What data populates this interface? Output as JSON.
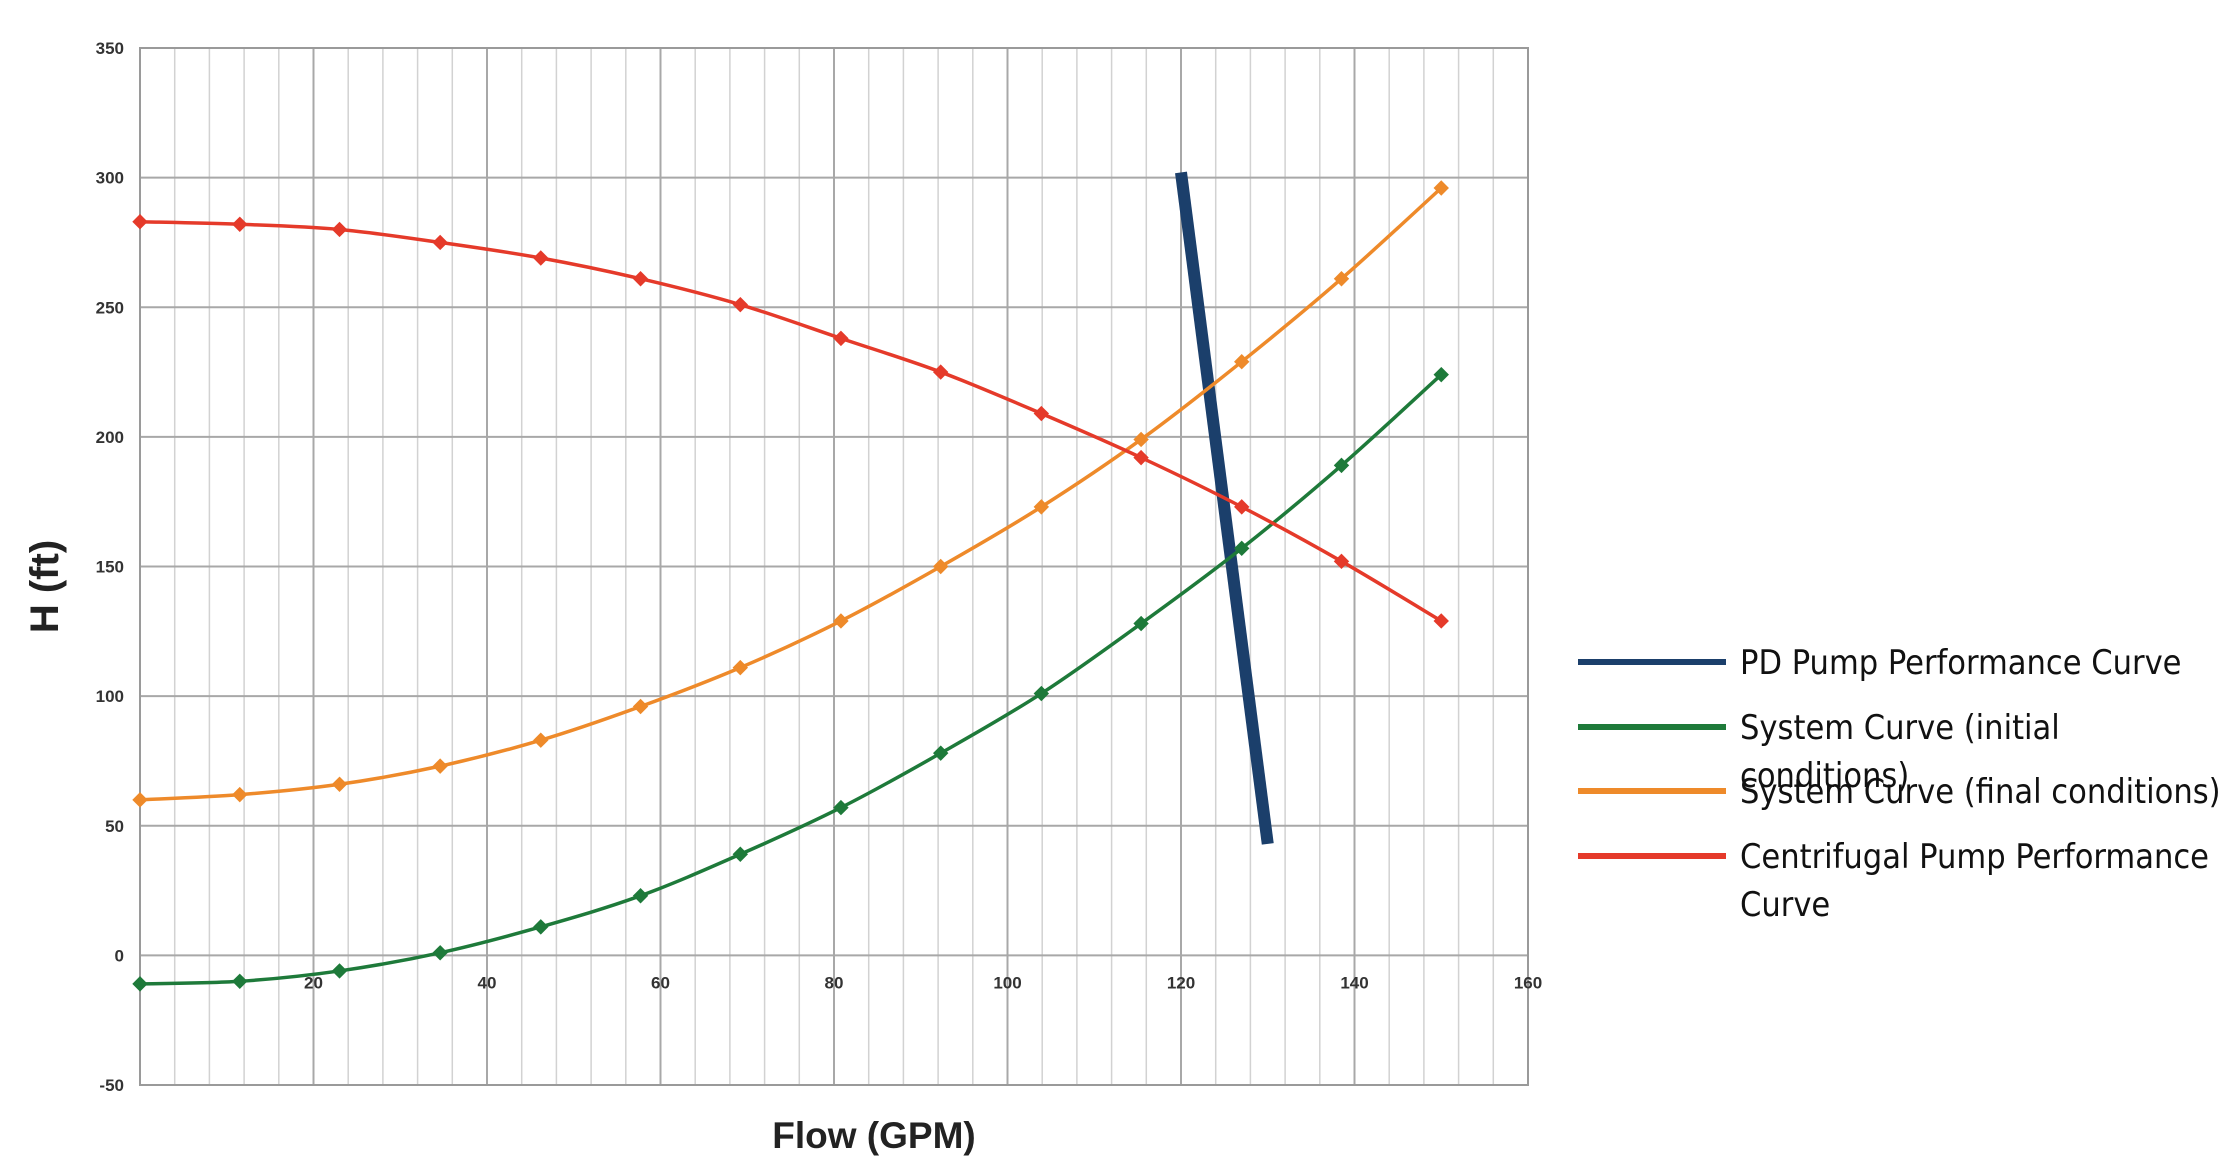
{
  "chart_data": {
    "type": "line",
    "title": "",
    "xlabel": "Flow (GPM)",
    "ylabel": "H (ft)",
    "xlim": [
      0,
      160
    ],
    "ylim": [
      -50,
      350
    ],
    "x_ticks": [
      20,
      40,
      60,
      80,
      100,
      120,
      140,
      160
    ],
    "y_ticks": [
      -50,
      0,
      50,
      100,
      150,
      200,
      250,
      300,
      350
    ],
    "x_minor_step": 4,
    "grid": true,
    "legend_position": "right",
    "series": [
      {
        "name": "PD Pump Performance Curve",
        "color": "#1b3f6b",
        "markers": false,
        "x": [
          120,
          130
        ],
        "y": [
          302,
          43
        ]
      },
      {
        "name": "System Curve (initial conditions)",
        "color": "#1e7a3a",
        "markers": true,
        "x": [
          0,
          11.5,
          23,
          34.6,
          46.2,
          57.7,
          69.2,
          80.8,
          92.3,
          103.9,
          115.4,
          127,
          138.5,
          150
        ],
        "y": [
          -11,
          -10,
          -6,
          1,
          11,
          23,
          39,
          57,
          78,
          101,
          128,
          157,
          189,
          224
        ]
      },
      {
        "name": "System Curve (final conditions)",
        "color": "#ee8a2a",
        "markers": true,
        "x": [
          0,
          11.5,
          23,
          34.6,
          46.2,
          57.7,
          69.2,
          80.8,
          92.3,
          103.9,
          115.4,
          127,
          138.5,
          150
        ],
        "y": [
          60,
          62,
          66,
          73,
          83,
          96,
          111,
          129,
          150,
          173,
          199,
          229,
          261,
          296
        ]
      },
      {
        "name": "Centrifugal Pump Performance Curve",
        "color": "#e53a2a",
        "markers": true,
        "x": [
          0,
          11.5,
          23,
          34.6,
          46.2,
          57.7,
          69.2,
          80.8,
          92.3,
          103.9,
          115.4,
          127,
          138.5,
          150
        ],
        "y": [
          283,
          282,
          280,
          275,
          269,
          261,
          251,
          238,
          225,
          209,
          192,
          173,
          152,
          129
        ]
      }
    ]
  }
}
